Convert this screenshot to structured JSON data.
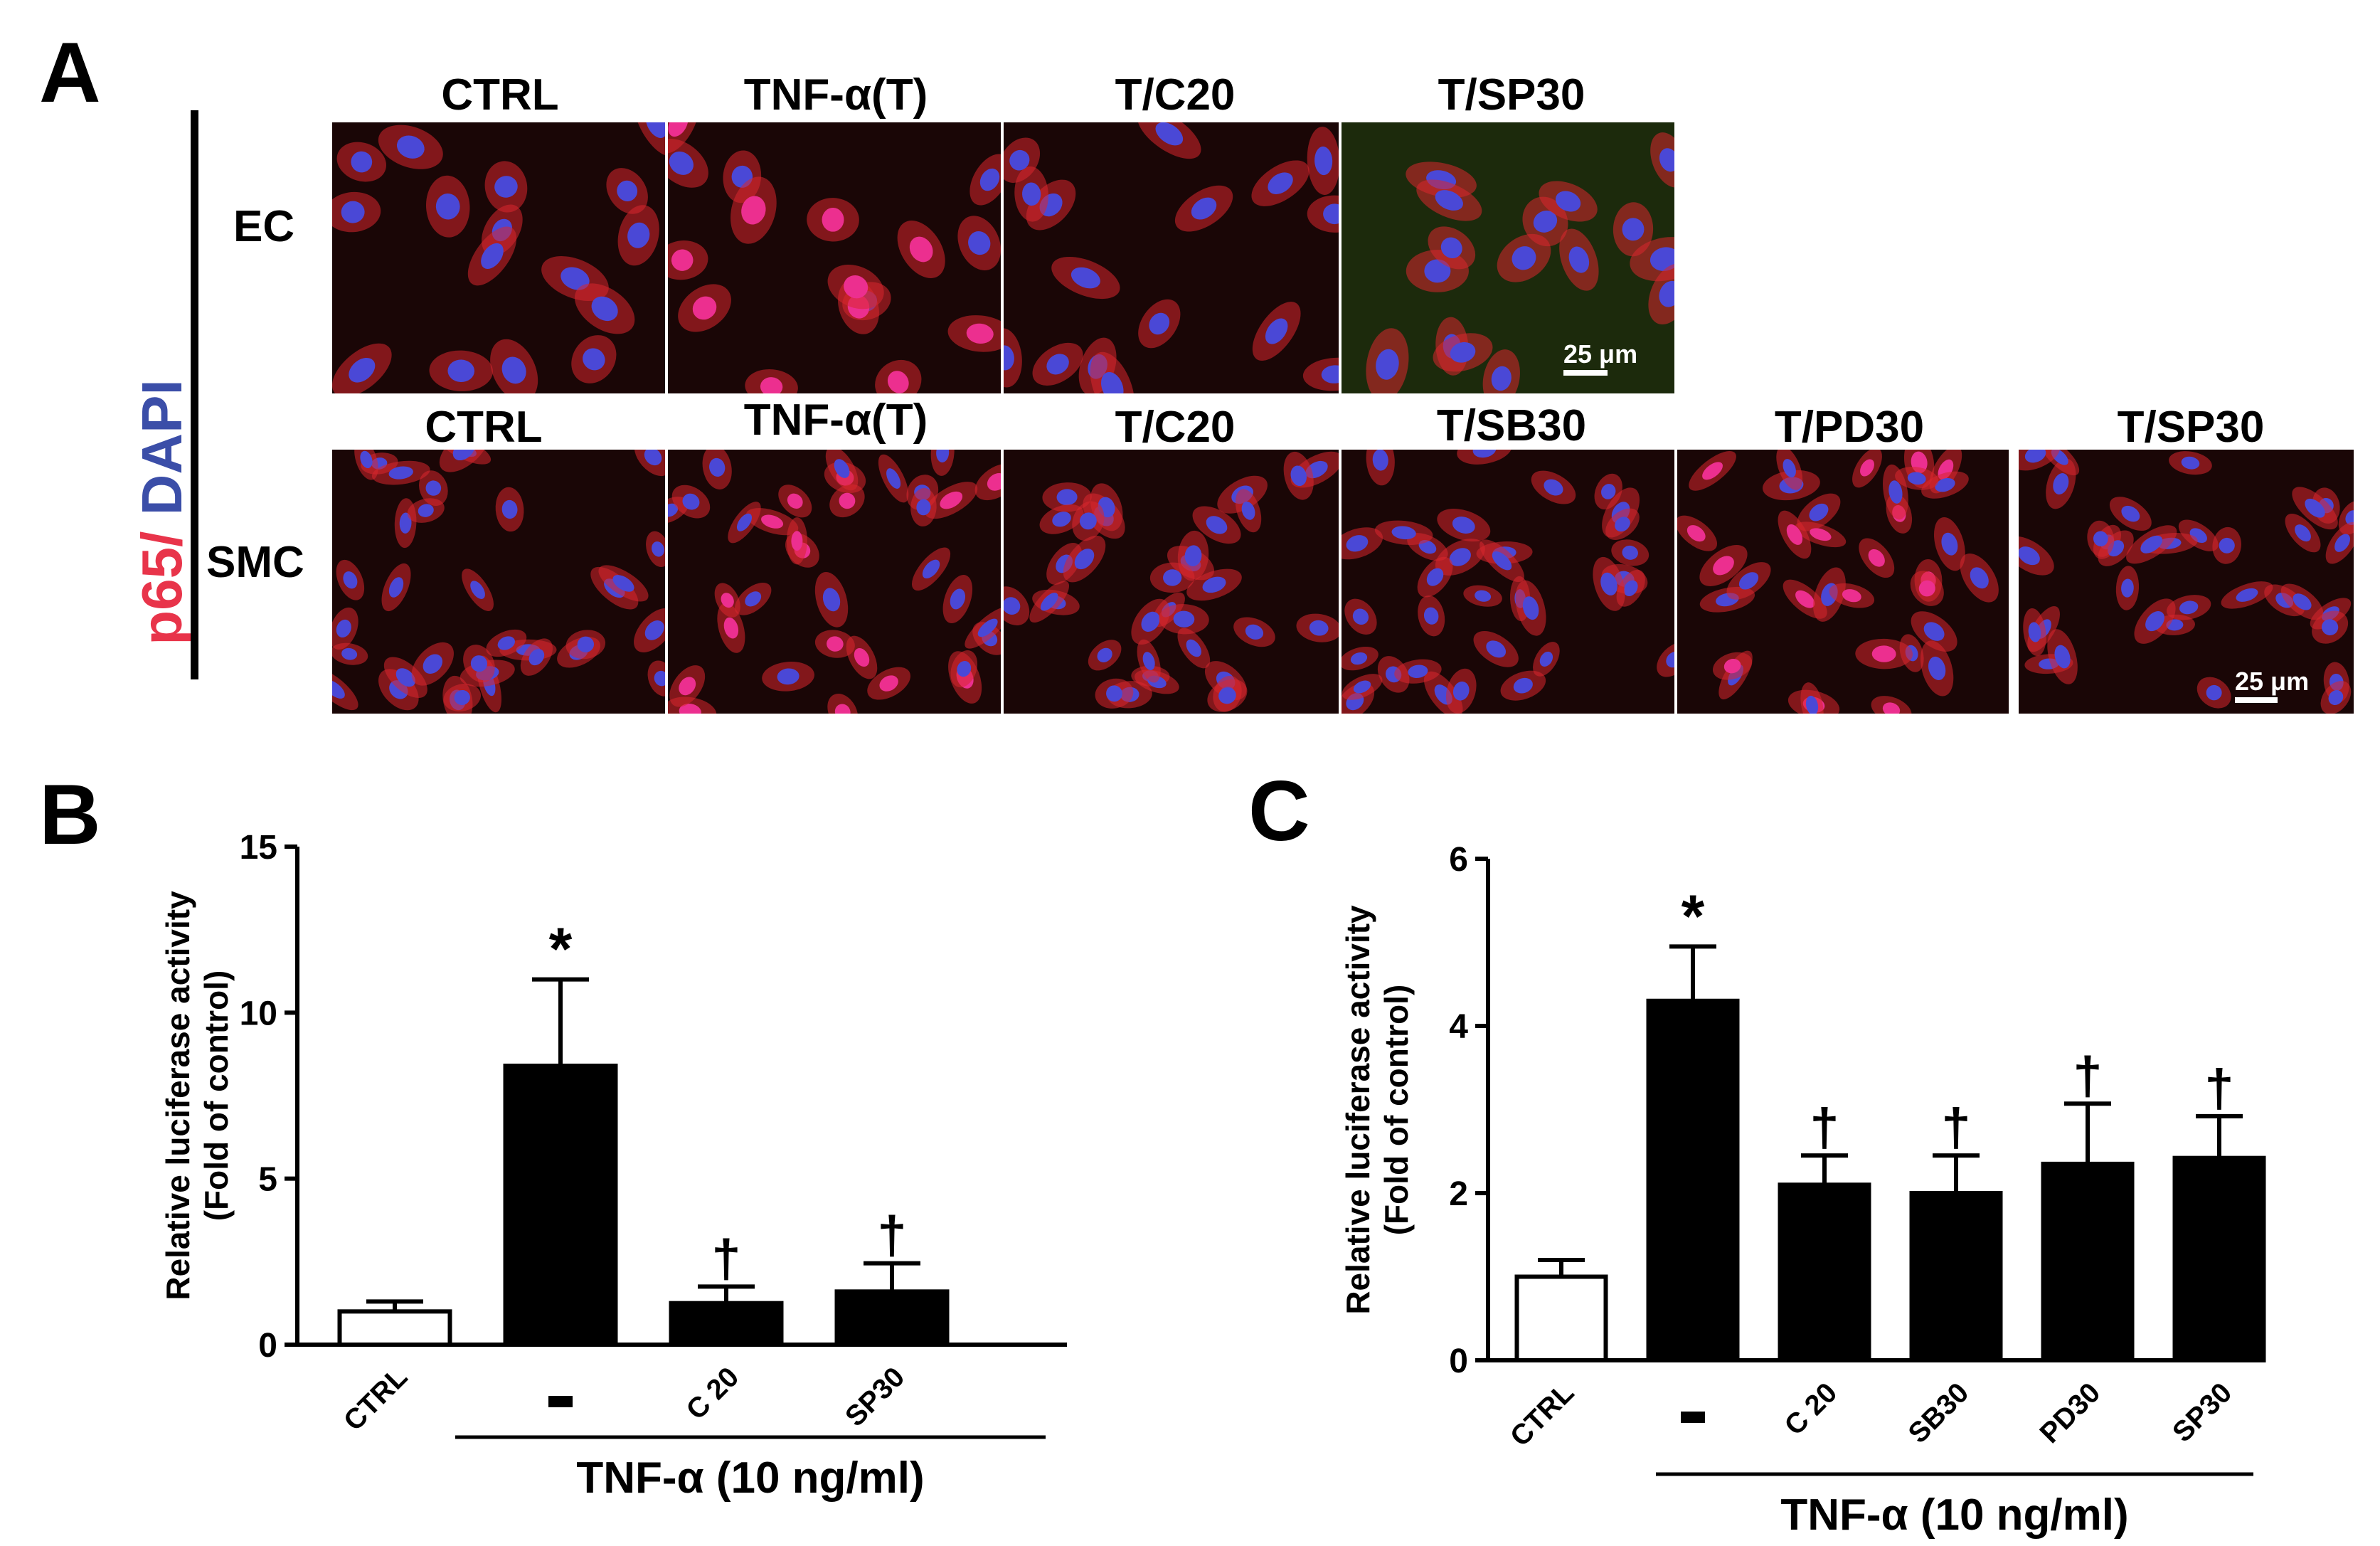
{
  "panel_a": {
    "letter": "A",
    "stain_label": {
      "p65": "p65/",
      "dapi": " DAPI"
    },
    "ec_row": {
      "label": "EC",
      "columns": [
        "CTRL",
        "TNF-α(T)",
        "T/C20",
        "T/SP30"
      ],
      "scale_bar": "25 μm"
    },
    "smc_row": {
      "label": "SMC",
      "columns": [
        "CTRL",
        "TNF-α(T)",
        "T/C20",
        "T/SB30",
        "T/PD30",
        "T/SP30"
      ],
      "scale_bar": "25 μm"
    },
    "colors": {
      "membrane": "#d9262e",
      "nucleus": "#4a48d6",
      "nucleus_bright": "#ec2f8f",
      "background": "#1a0606"
    }
  },
  "chart_data": [
    {
      "panel_letter": "B",
      "type": "bar",
      "categories": [
        "CTRL",
        "-",
        "C 20",
        "SP30"
      ],
      "values": [
        1.0,
        8.4,
        1.25,
        1.6
      ],
      "errors": [
        0.3,
        2.6,
        0.5,
        0.85
      ],
      "bar_fill": [
        "white",
        "black",
        "black",
        "black"
      ],
      "annotations": [
        "",
        "*",
        "†",
        "†"
      ],
      "ylabel_line1": "Relative luciferase activity",
      "ylabel_line2": "(Fold of control)",
      "ylim": [
        0,
        15
      ],
      "yticks": [
        "0",
        "5",
        "10",
        "15"
      ],
      "group_label": "TNF-α (10 ng/ml)",
      "grid": false
    },
    {
      "panel_letter": "C",
      "type": "bar",
      "categories": [
        "CTRL",
        "-",
        "C 20",
        "SB30",
        "PD30",
        "SP30"
      ],
      "values": [
        1.0,
        4.3,
        2.1,
        2.0,
        2.35,
        2.42
      ],
      "errors": [
        0.2,
        0.65,
        0.35,
        0.45,
        0.72,
        0.5
      ],
      "bar_fill": [
        "white",
        "black",
        "black",
        "black",
        "black",
        "black"
      ],
      "annotations": [
        "",
        "*",
        "†",
        "†",
        "†",
        "†"
      ],
      "ylabel_line1": "Relative luciferase activity",
      "ylabel_line2": "(Fold of control)",
      "ylim": [
        0,
        6
      ],
      "yticks": [
        "0",
        "2",
        "4",
        "6"
      ],
      "group_label": "TNF-α (10 ng/ml)",
      "grid": false
    }
  ]
}
